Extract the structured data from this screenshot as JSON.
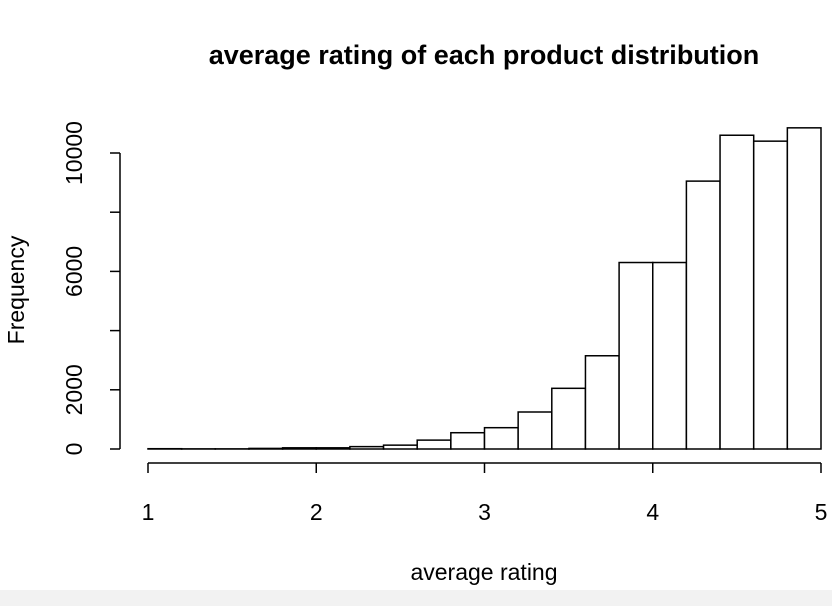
{
  "chart_data": {
    "type": "bar",
    "title": "average rating of each product distribution",
    "xlabel": "average rating",
    "ylabel": "Frequency",
    "bin_edges": [
      1.0,
      1.2,
      1.4,
      1.6,
      1.8,
      2.0,
      2.2,
      2.4,
      2.6,
      2.8,
      3.0,
      3.2,
      3.4,
      3.6,
      3.8,
      4.0,
      4.2,
      4.4,
      4.6,
      4.8,
      5.0
    ],
    "values": [
      10,
      5,
      5,
      20,
      40,
      40,
      80,
      130,
      300,
      550,
      720,
      1250,
      2050,
      3150,
      6300,
      6300,
      9050,
      10600,
      10400,
      10850
    ],
    "xlim": [
      1,
      5
    ],
    "ylim": [
      0,
      11000
    ],
    "x_ticks": [
      1,
      2,
      3,
      4,
      5
    ],
    "x_tick_labels": [
      "1",
      "2",
      "3",
      "4",
      "5"
    ],
    "y_ticks": [
      0,
      2000,
      4000,
      6000,
      8000,
      10000
    ],
    "y_tick_labels": [
      "0",
      "2000",
      "",
      "6000",
      "",
      "10000"
    ],
    "bar_fill": "#ffffff",
    "bar_stroke": "#000000",
    "grid": false,
    "legend": "none"
  }
}
